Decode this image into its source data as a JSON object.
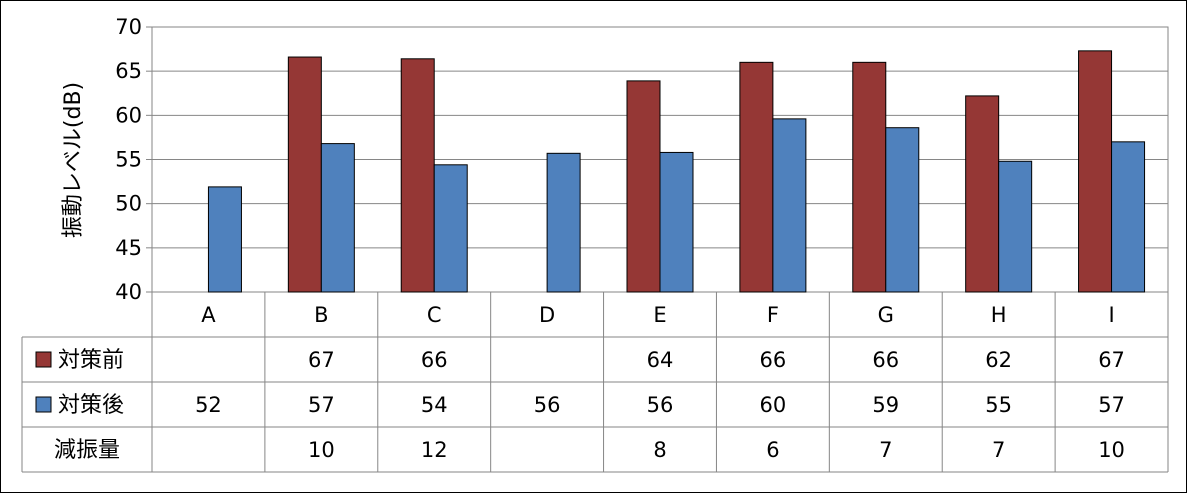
{
  "chart_data": {
    "type": "bar",
    "ylabel": "振動レベル(dB)",
    "ylim": [
      40,
      70
    ],
    "yticks": [
      40,
      45,
      50,
      55,
      60,
      65,
      70
    ],
    "grid": true,
    "categories": [
      "A",
      "B",
      "C",
      "D",
      "E",
      "F",
      "G",
      "H",
      "I"
    ],
    "series": [
      {
        "name": "対策前",
        "color": "#953735",
        "values": [
          null,
          66.6,
          66.4,
          null,
          63.9,
          66.0,
          66.0,
          62.2,
          67.3
        ],
        "labels": [
          "",
          "67",
          "66",
          "",
          "64",
          "66",
          "66",
          "62",
          "67"
        ]
      },
      {
        "name": "対策後",
        "color": "#4f81bd",
        "values": [
          51.9,
          56.8,
          54.4,
          55.7,
          55.8,
          59.6,
          58.6,
          54.8,
          57.0
        ],
        "labels": [
          "52",
          "57",
          "54",
          "56",
          "56",
          "60",
          "59",
          "55",
          "57"
        ]
      }
    ],
    "table_extra_row": {
      "name": "減振量",
      "labels": [
        "",
        "10",
        "12",
        "",
        "8",
        "6",
        "7",
        "7",
        "10"
      ]
    }
  }
}
